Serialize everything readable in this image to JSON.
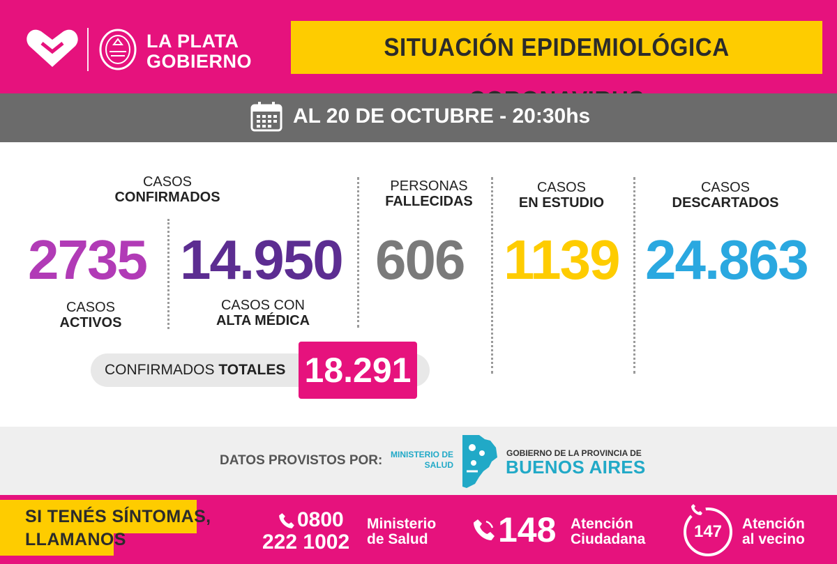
{
  "header": {
    "brand_line1": "LA PLATA",
    "brand_line2": "GOBIERNO",
    "title": "SITUACIÓN EPIDEMIOLÓGICA CORONAVIRUS",
    "brand_color": "#e6127d",
    "accent_color": "#fecc00"
  },
  "date_band": {
    "icon": "calendar-icon",
    "text": "AL 20 DE OCTUBRE - 20:30hs"
  },
  "stats": {
    "confirmados_header_line1": "CASOS",
    "confirmados_header_line2": "CONFIRMADOS",
    "activos": {
      "value": "2735",
      "label_line1": "CASOS",
      "label_line2": "ACTIVOS",
      "color": "#b13bb6"
    },
    "alta": {
      "value": "14.950",
      "label_line1": "CASOS CON",
      "label_line2": "ALTA MÉDICA",
      "color": "#5c2d91"
    },
    "fallecidas": {
      "value": "606",
      "label_line1": "PERSONAS",
      "label_line2": "FALLECIDAS",
      "color": "#7a7a7a"
    },
    "estudio": {
      "value": "1139",
      "label_line1": "CASOS",
      "label_line2": "EN ESTUDIO",
      "color": "#fecc00"
    },
    "descartados": {
      "value": "24.863",
      "label_line1": "CASOS",
      "label_line2": "DESCARTADOS",
      "color": "#2aa8e0"
    },
    "totales": {
      "label_regular": "CONFIRMADOS ",
      "label_bold": "TOTALES",
      "value": "18.291"
    }
  },
  "provided": {
    "label": "DATOS PROVISTOS POR:",
    "ministerio_line1": "MINISTERIO DE",
    "ministerio_line2": "SALUD",
    "map_icon": "buenos-aires-map-icon",
    "gob_small": "GOBIERNO DE LA PROVINCIA DE",
    "gob_big": "BUENOS AIRES"
  },
  "footer": {
    "sintomas_line1": "SI TENÉS SÍNTOMAS,",
    "sintomas_line2": "LLAMANOS",
    "salud_number_line1": "0800",
    "salud_number_line2": "222 1002",
    "salud_label_line1": "Ministerio",
    "salud_label_line2": "de Salud",
    "ciudadana_number": "148",
    "ciudadana_label_line1": "Atención",
    "ciudadana_label_line2": "Ciudadana",
    "vecino_number": "147",
    "vecino_label_line1": "Atención",
    "vecino_label_line2": "al vecino",
    "phone_icon": "phone-icon"
  }
}
